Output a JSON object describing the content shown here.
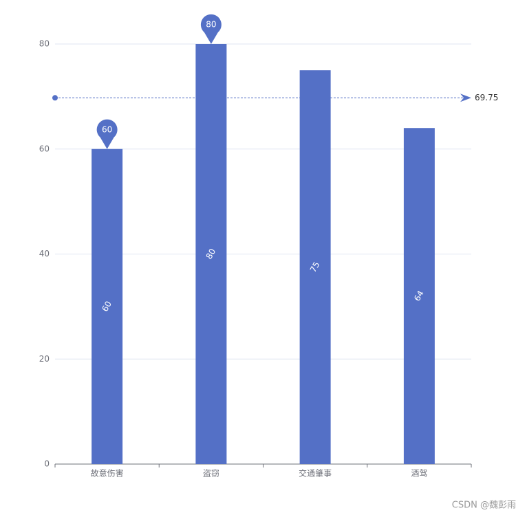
{
  "chart_data": {
    "type": "bar",
    "categories": [
      "故意伤害",
      "盗窃",
      "交通肇事",
      "酒驾"
    ],
    "values": [
      60,
      80,
      75,
      64
    ],
    "color": "#5470c6",
    "ylim": [
      0,
      80
    ],
    "yticks": [
      0,
      20,
      40,
      60,
      80
    ],
    "grid": true,
    "average": 69.75
  },
  "watermark": "CSDN @魏彭雨"
}
